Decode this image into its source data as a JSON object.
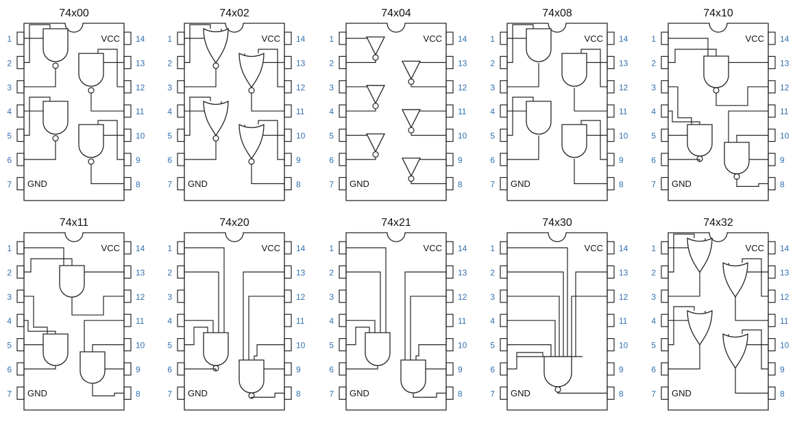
{
  "chips": [
    {
      "name": "74x00",
      "gates": "nand2"
    },
    {
      "name": "74x02",
      "gates": "nor2"
    },
    {
      "name": "74x04",
      "gates": "not"
    },
    {
      "name": "74x08",
      "gates": "and2"
    },
    {
      "name": "74x10",
      "gates": "nand3"
    },
    {
      "name": "74x11",
      "gates": "and3"
    },
    {
      "name": "74x20",
      "gates": "nand4"
    },
    {
      "name": "74x21",
      "gates": "and4"
    },
    {
      "name": "74x30",
      "gates": "nand8"
    },
    {
      "name": "74x32",
      "gates": "or2"
    }
  ],
  "left_pins": [
    "1",
    "2",
    "3",
    "4",
    "5",
    "6",
    "7"
  ],
  "right_pins": [
    "14",
    "13",
    "12",
    "11",
    "10",
    "9",
    "8"
  ],
  "vcc_label": "VCC",
  "gnd_label": "GND",
  "colors": {
    "pin_number": "#2f6fb0",
    "line": "#222222"
  }
}
